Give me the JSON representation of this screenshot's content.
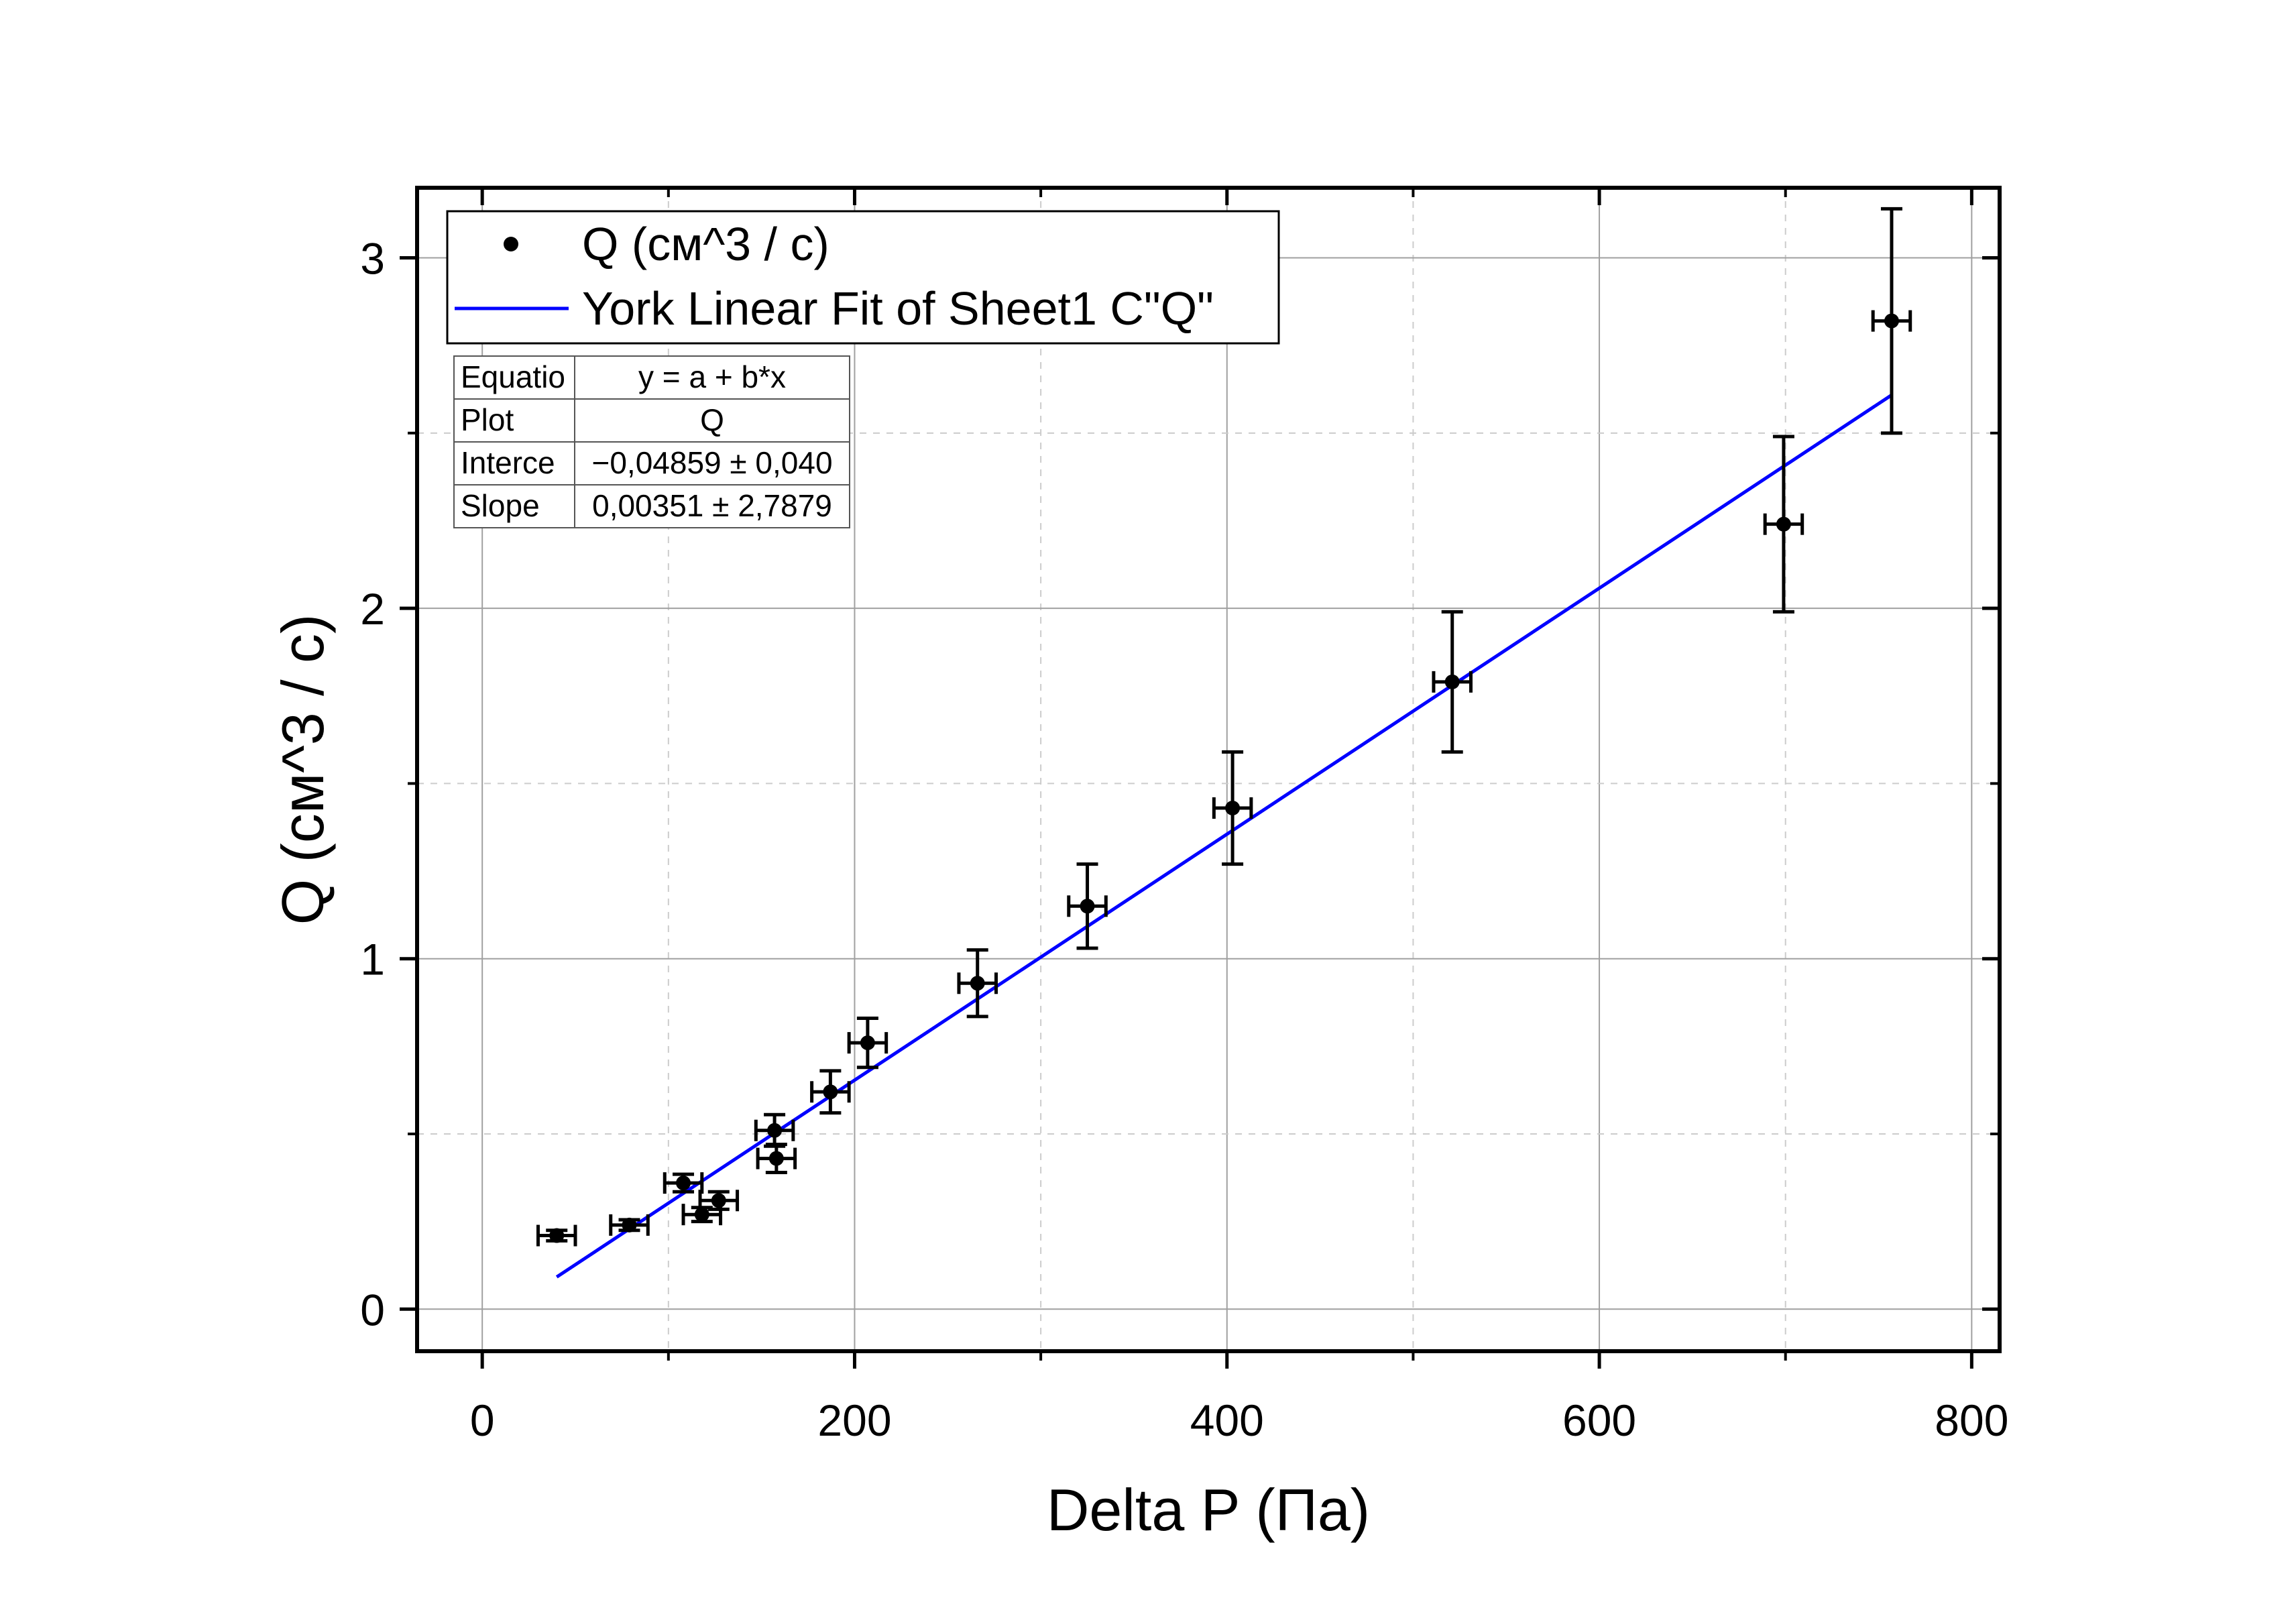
{
  "chart_data": {
    "type": "scatter",
    "title": "",
    "xlabel": "Delta P (Па)",
    "ylabel": "Q (см^3 / с)",
    "xlim": [
      -35,
      815
    ],
    "ylim": [
      -0.12,
      3.2
    ],
    "xticks": [
      0,
      200,
      400,
      600,
      800
    ],
    "xtick_labels": [
      "0",
      "200",
      "400",
      "600",
      "800"
    ],
    "yticks": [
      0,
      1,
      2,
      3
    ],
    "ytick_labels": [
      "0",
      "1",
      "2",
      "3"
    ],
    "grid": true,
    "legend_position": "top-left",
    "series": [
      {
        "name": "Q (см^3 / с)",
        "kind": "scatter-with-errorbars",
        "color": "#000000",
        "points": [
          {
            "x": 40,
            "y": 0.21,
            "xerr": 10,
            "yerr": 0.015
          },
          {
            "x": 79,
            "y": 0.24,
            "xerr": 10,
            "yerr": 0.015
          },
          {
            "x": 108,
            "y": 0.36,
            "xerr": 10,
            "yerr": 0.025
          },
          {
            "x": 118,
            "y": 0.27,
            "xerr": 10,
            "yerr": 0.02
          },
          {
            "x": 127,
            "y": 0.31,
            "xerr": 10,
            "yerr": 0.025
          },
          {
            "x": 157,
            "y": 0.51,
            "xerr": 10,
            "yerr": 0.045
          },
          {
            "x": 158,
            "y": 0.43,
            "xerr": 10,
            "yerr": 0.04
          },
          {
            "x": 187,
            "y": 0.62,
            "xerr": 10,
            "yerr": 0.06
          },
          {
            "x": 207,
            "y": 0.76,
            "xerr": 10,
            "yerr": 0.07
          },
          {
            "x": 266,
            "y": 0.93,
            "xerr": 10,
            "yerr": 0.095
          },
          {
            "x": 325,
            "y": 1.15,
            "xerr": 10,
            "yerr": 0.12
          },
          {
            "x": 403,
            "y": 1.43,
            "xerr": 10,
            "yerr": 0.16
          },
          {
            "x": 521,
            "y": 1.79,
            "xerr": 10,
            "yerr": 0.2
          },
          {
            "x": 699,
            "y": 2.24,
            "xerr": 10,
            "yerr": 0.25
          },
          {
            "x": 757,
            "y": 2.82,
            "xerr": 10,
            "yerr": 0.32
          }
        ]
      },
      {
        "name": "York Linear Fit of Sheet1 C\"Q\"",
        "kind": "line",
        "color": "#0000ff",
        "x_range": [
          40,
          757
        ],
        "intercept": -0.04859,
        "slope": 0.00351
      }
    ],
    "stats_table": [
      [
        "Equatio",
        "y = a + b*x"
      ],
      [
        "Plot",
        "Q"
      ],
      [
        "Interce",
        "−0,04859 ± 0,040"
      ],
      [
        "Slope",
        "0,00351 ± 2,7879"
      ]
    ]
  }
}
